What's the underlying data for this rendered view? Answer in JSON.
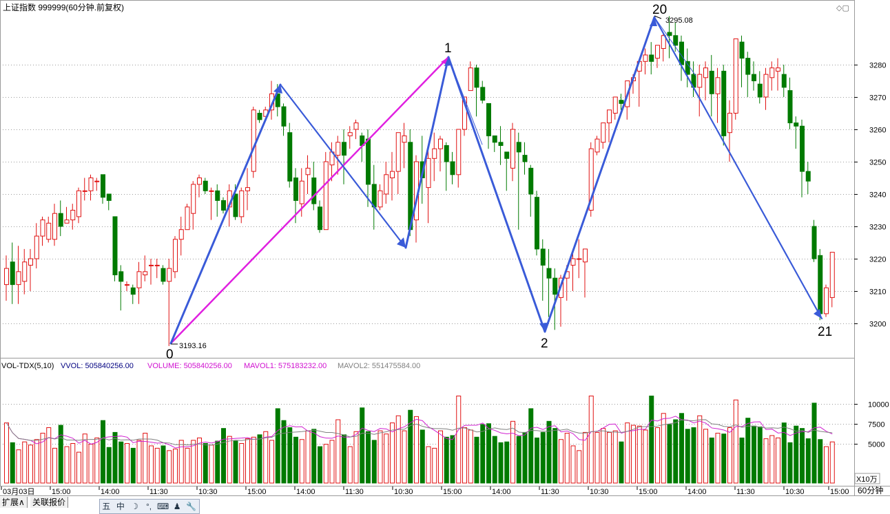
{
  "header": {
    "title": "上证指数 999999(60分钟.前复权)",
    "window_icons": "◇▢"
  },
  "price_axis": {
    "ticks": [
      3280,
      3270,
      3260,
      3250,
      3240,
      3230,
      3220,
      3210,
      3200
    ]
  },
  "volume_axis": {
    "ticks": [
      "10000",
      "7500",
      "5000"
    ],
    "unit": "X10万"
  },
  "time_axis": {
    "labels": [
      "03月03日",
      "15:00",
      "14:00",
      "11:30",
      "10:30",
      "15:00",
      "14:00",
      "11:30",
      "10:30",
      "15:00",
      "14:00",
      "11:30",
      "10:30",
      "15:00",
      "14:00",
      "11:30",
      "10:30",
      "15:00"
    ],
    "period": "60分钟"
  },
  "annotations": {
    "low_price": "3193.16",
    "high_price": "3295.08",
    "wave_labels": [
      "0",
      "1",
      "2",
      "20",
      "21"
    ]
  },
  "indicator": {
    "name": "VOL-TDX(5,10)",
    "vvol": "VVOL: 505840256.00",
    "volume": "VOLUME: 505840256.00",
    "mavol1": "MAVOL1: 575183232.00",
    "mavol2": "MAVOL2: 551475584.00"
  },
  "bottom_bar": {
    "tab1": "扩展∧",
    "tab2": "关联报价",
    "tools": [
      "五",
      "中",
      "☽",
      "°,",
      "⌨",
      "♟",
      "🔧"
    ]
  },
  "colors": {
    "up": "#e01010",
    "down": "#007a00",
    "wave_line": "#3a5bd8",
    "magenta_line": "#e020e0",
    "mavol1": "#d020d0",
    "mavol2": "#808080"
  },
  "chart_data": {
    "type": "candlestick",
    "price_range": [
      3190,
      3300
    ],
    "volume_range_x10w": [
      0,
      13000
    ],
    "candles_ohlc": [
      [
        3212,
        3221,
        3207,
        3217,
        7600
      ],
      [
        3219,
        3225,
        3206,
        3212,
        5100
      ],
      [
        3212,
        3224,
        3206,
        3216,
        4200
      ],
      [
        3213,
        3223,
        3209,
        3219,
        5200
      ],
      [
        3218,
        3223,
        3210,
        3220,
        4800
      ],
      [
        3220,
        3231,
        3217,
        3227,
        5500
      ],
      [
        3227,
        3233,
        3224,
        3232,
        6300
      ],
      [
        3226,
        3233,
        3225,
        3231,
        7000
      ],
      [
        3226,
        3237,
        3224,
        3234,
        4400
      ],
      [
        3234,
        3238,
        3227,
        3230,
        7300
      ],
      [
        3231,
        3236,
        3231,
        3232,
        4600
      ],
      [
        3232,
        3237,
        3229,
        3235,
        5000
      ],
      [
        3233,
        3242,
        3231,
        3241,
        3900
      ],
      [
        3241,
        3245,
        3238,
        3241,
        6200
      ],
      [
        3241,
        3246,
        3238,
        3245,
        4900
      ],
      [
        3244,
        3245,
        3241,
        3244,
        5700
      ],
      [
        3246,
        3246,
        3237,
        3239,
        7900
      ],
      [
        3240,
        3240,
        3235,
        3238,
        4500
      ],
      [
        3233,
        3233,
        3213,
        3215,
        6400
      ],
      [
        3216,
        3218,
        3204,
        3213,
        5200
      ],
      [
        3212,
        3213,
        3210,
        3212,
        5000
      ],
      [
        3211,
        3212,
        3206,
        3209,
        4400
      ],
      [
        3211,
        3219,
        3206,
        3216,
        5400
      ],
      [
        3215,
        3221,
        3213,
        3216,
        6300
      ],
      [
        3218,
        3220,
        3212,
        3218,
        4700
      ],
      [
        3218,
        3220,
        3214,
        3218,
        4400
      ],
      [
        3217,
        3218,
        3212,
        3213,
        4700
      ],
      [
        3213,
        3220,
        3193,
        3217,
        4100
      ],
      [
        3216,
        3227,
        3214,
        3226,
        4300
      ],
      [
        3226,
        3233,
        3221,
        3229,
        5400
      ],
      [
        3229,
        3237,
        3229,
        3236,
        4400
      ],
      [
        3234,
        3244,
        3229,
        3243,
        5400
      ],
      [
        3243,
        3246,
        3239,
        3245,
        5700
      ],
      [
        3244,
        3245,
        3240,
        3241,
        5000
      ],
      [
        3241,
        3242,
        3232,
        3241,
        4800
      ],
      [
        3241,
        3243,
        3233,
        3238,
        5300
      ],
      [
        3238,
        3239,
        3234,
        3235,
        6900
      ],
      [
        3236,
        3243,
        3230,
        3241,
        5900
      ],
      [
        3240,
        3243,
        3232,
        3233,
        5300
      ],
      [
        3233,
        3242,
        3231,
        3241,
        5000
      ],
      [
        3241,
        3248,
        3235,
        3242,
        5600
      ],
      [
        3247,
        3267,
        3245,
        3266,
        5800
      ],
      [
        3265,
        3266,
        3262,
        3263,
        6100
      ],
      [
        3264,
        3267,
        3264,
        3266,
        6500
      ],
      [
        3266,
        3275,
        3263,
        3271,
        5400
      ],
      [
        3271,
        3274,
        3264,
        3267,
        9400
      ],
      [
        3267,
        3268,
        3258,
        3261,
        7900
      ],
      [
        3259,
        3262,
        3242,
        3244,
        7000
      ],
      [
        3245,
        3248,
        3231,
        3238,
        5800
      ],
      [
        3237,
        3248,
        3233,
        3244,
        5500
      ],
      [
        3246,
        3252,
        3240,
        3248,
        6600
      ],
      [
        3245,
        3250,
        3235,
        3237,
        6800
      ],
      [
        3236,
        3238,
        3228,
        3229,
        4600
      ],
      [
        3229,
        3253,
        3230,
        3250,
        4900
      ],
      [
        3249,
        3256,
        3244,
        3253,
        5400
      ],
      [
        3252,
        3258,
        3246,
        3256,
        8000
      ],
      [
        3256,
        3260,
        3243,
        3252,
        6100
      ],
      [
        3258,
        3261,
        3254,
        3259,
        4600
      ],
      [
        3260,
        3263,
        3257,
        3262,
        6500
      ],
      [
        3258,
        3259,
        3250,
        3255,
        9500
      ],
      [
        3257,
        3260,
        3236,
        3243,
        6500
      ],
      [
        3243,
        3249,
        3229,
        3236,
        5400
      ],
      [
        3236,
        3243,
        3235,
        3241,
        6600
      ],
      [
        3240,
        3250,
        3237,
        3246,
        6200
      ],
      [
        3245,
        3253,
        3238,
        3247,
        7600
      ],
      [
        3247,
        3257,
        3240,
        3259,
        8500
      ],
      [
        3256,
        3262,
        3248,
        3258,
        6600
      ],
      [
        3256,
        3260,
        3227,
        3229,
        9200
      ],
      [
        3232,
        3252,
        3225,
        3250,
        8400
      ],
      [
        3250,
        3258,
        3237,
        3245,
        6700
      ],
      [
        3242,
        3254,
        3231,
        3251,
        4600
      ],
      [
        3251,
        3259,
        3244,
        3254,
        4400
      ],
      [
        3254,
        3258,
        3247,
        3257,
        6600
      ],
      [
        3255,
        3256,
        3241,
        3250,
        5800
      ],
      [
        3250,
        3253,
        3243,
        3246,
        6000
      ],
      [
        3246,
        3260,
        3242,
        3260,
        11000
      ],
      [
        3260,
        3267,
        3258,
        3270,
        7000
      ],
      [
        3272,
        3281,
        3273,
        3279,
        6700
      ],
      [
        3279,
        3280,
        3264,
        3273,
        5800
      ],
      [
        3273,
        3275,
        3268,
        3269,
        7400
      ],
      [
        3268,
        3267,
        3254,
        3258,
        7500
      ],
      [
        3258,
        3258,
        3253,
        3256,
        5900
      ],
      [
        3256,
        3261,
        3249,
        3255,
        5100
      ],
      [
        3253,
        3253,
        3241,
        3251,
        5200
      ],
      [
        3248,
        3262,
        3244,
        3260,
        7800
      ],
      [
        3256,
        3259,
        3229,
        3253,
        5900
      ],
      [
        3252,
        3256,
        3246,
        3250,
        6400
      ],
      [
        3248,
        3249,
        3233,
        3240,
        9400
      ],
      [
        3239,
        3241,
        3221,
        3223,
        5700
      ],
      [
        3223,
        3226,
        3207,
        3218,
        6400
      ],
      [
        3217,
        3223,
        3202,
        3214,
        7800
      ],
      [
        3214,
        3217,
        3198,
        3209,
        6900
      ],
      [
        3208,
        3215,
        3199,
        3214,
        5500
      ],
      [
        3214,
        3218,
        3207,
        3216,
        6300
      ],
      [
        3218,
        3223,
        3210,
        3220,
        4700
      ],
      [
        3220,
        3226,
        3214,
        3220,
        4100
      ],
      [
        3219,
        3223,
        3208,
        3223,
        6400
      ],
      [
        3235,
        3256,
        3233,
        3254,
        11000
      ],
      [
        3253,
        3258,
        3252,
        3257,
        6400
      ],
      [
        3256,
        3262,
        3254,
        3262,
        6900
      ],
      [
        3262,
        3264,
        3256,
        3266,
        6400
      ],
      [
        3265,
        3270,
        3263,
        3270,
        6600
      ],
      [
        3269,
        3271,
        3266,
        3268,
        5200
      ],
      [
        3267,
        3272,
        3263,
        3275,
        7600
      ],
      [
        3275,
        3277,
        3271,
        3276,
        7300
      ],
      [
        3278,
        3280,
        3267,
        3281,
        7200
      ],
      [
        3281,
        3285,
        3277,
        3283,
        6700
      ],
      [
        3283,
        3287,
        3277,
        3281,
        11000
      ],
      [
        3282,
        3286,
        3279,
        3286,
        7000
      ],
      [
        3285,
        3290,
        3281,
        3289,
        8800
      ],
      [
        3290,
        3295,
        3282,
        3289,
        7400
      ],
      [
        3289,
        3293,
        3284,
        3286,
        8000
      ],
      [
        3287,
        3289,
        3275,
        3280,
        8800
      ],
      [
        3281,
        3285,
        3273,
        3277,
        6800
      ],
      [
        3277,
        3281,
        3270,
        3273,
        7000
      ],
      [
        3273,
        3280,
        3264,
        3277,
        8500
      ],
      [
        3276,
        3281,
        3269,
        3279,
        6800
      ],
      [
        3278,
        3283,
        3264,
        3271,
        5700
      ],
      [
        3271,
        3279,
        3262,
        3276,
        6300
      ],
      [
        3278,
        3280,
        3255,
        3258,
        6200
      ],
      [
        3259,
        3269,
        3250,
        3265,
        7000
      ],
      [
        3265,
        3285,
        3263,
        3288,
        10500
      ],
      [
        3287,
        3289,
        3273,
        3282,
        5700
      ],
      [
        3282,
        3284,
        3270,
        3277,
        8200
      ],
      [
        3277,
        3281,
        3272,
        3275,
        7200
      ],
      [
        3274,
        3278,
        3268,
        3270,
        7100
      ],
      [
        3270,
        3279,
        3266,
        3277,
        5600
      ],
      [
        3276,
        3281,
        3272,
        3279,
        6000
      ],
      [
        3278,
        3282,
        3272,
        3279,
        5700
      ],
      [
        3277,
        3280,
        3270,
        3273,
        7600
      ],
      [
        3272,
        3276,
        3260,
        3262,
        5100
      ],
      [
        3262,
        3264,
        3254,
        3261,
        7200
      ],
      [
        3261,
        3263,
        3239,
        3247,
        6900
      ],
      [
        3247,
        3250,
        3240,
        3244,
        5600
      ],
      [
        3230,
        3232,
        3219,
        3220,
        10100
      ],
      [
        3221,
        3223,
        3201,
        3203,
        5500
      ],
      [
        3203,
        3212,
        3202,
        3211,
        4600
      ],
      [
        3208,
        3222,
        3205,
        3222,
        5200
      ]
    ]
  }
}
